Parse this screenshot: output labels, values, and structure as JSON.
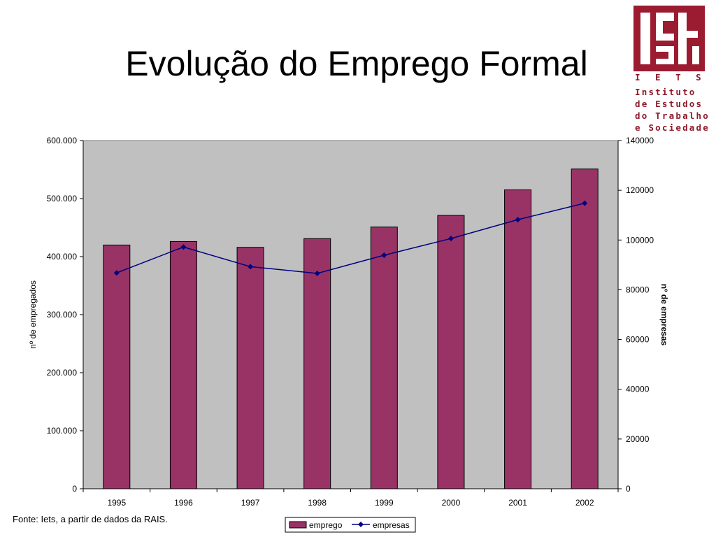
{
  "slide": {
    "title": "Evolução do Emprego Formal",
    "source_note": "Fonte: Iets, a partir de dados da RAIS."
  },
  "logo": {
    "mark_text": "iets",
    "acronym": "I E T S",
    "lines": [
      "Instituto",
      "de Estudos",
      "do Trabalho",
      "e Sociedade"
    ],
    "color": "#9b1b30"
  },
  "chart_data": {
    "type": "bar",
    "categories": [
      "1995",
      "1996",
      "1997",
      "1998",
      "1999",
      "2000",
      "2001",
      "2002"
    ],
    "series": [
      {
        "name": "emprego",
        "type": "bar",
        "axis": "left",
        "color": "#993366",
        "values": [
          420000,
          426000,
          416000,
          431000,
          451000,
          471000,
          515000,
          551000
        ]
      },
      {
        "name": "empresas",
        "type": "line",
        "axis": "right",
        "color": "#000080",
        "values": [
          86800,
          97200,
          89300,
          86600,
          93900,
          100600,
          108200,
          114800
        ]
      }
    ],
    "ylabel": "nº de empregados",
    "y2label": "nº de empresas",
    "ylim": [
      0,
      600000
    ],
    "y2lim": [
      0,
      140000
    ],
    "yticks": [
      "0",
      "100.000",
      "200.000",
      "300.000",
      "400.000",
      "500.000",
      "600.000"
    ],
    "y2ticks": [
      "0",
      "20000",
      "40000",
      "60000",
      "80000",
      "100000",
      "120000",
      "140000"
    ],
    "plot_background": "#c0c0c0",
    "grid": false,
    "legend_position": "bottom"
  }
}
